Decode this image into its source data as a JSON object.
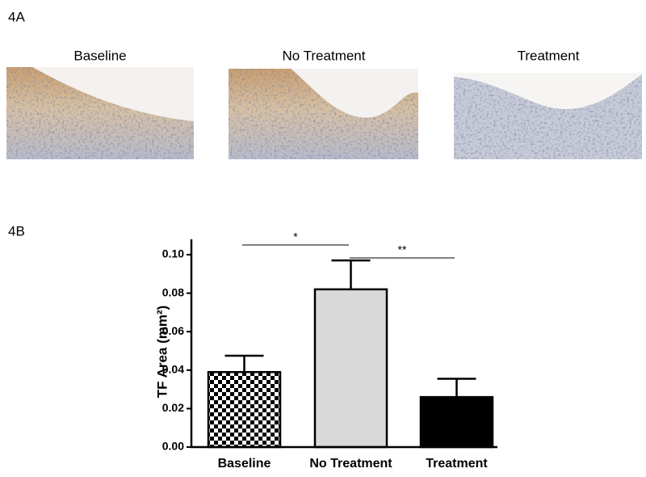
{
  "figure": {
    "panel_a": {
      "label": "4A",
      "images": [
        "Baseline",
        "No Treatment",
        "Treatment"
      ]
    },
    "panel_b_label": "4B"
  },
  "chart_data": {
    "type": "bar",
    "y_label": "TF Area (mm²)",
    "categories": [
      "Baseline",
      "No Treatment",
      "Treatment"
    ],
    "values": [
      0.039,
      0.082,
      0.026
    ],
    "errors": [
      0.0085,
      0.015,
      0.0095
    ],
    "colors": [
      "#ffffff",
      "#d9d9d9",
      "#000000"
    ],
    "fills": [
      "checkerboard",
      "solid",
      "solid"
    ],
    "ylim": [
      0,
      0.108
    ],
    "yticks": [
      {
        "value": 0,
        "label": "0.00"
      },
      {
        "value": 0.02,
        "label": "0.02"
      },
      {
        "value": 0.04,
        "label": "0.04"
      },
      {
        "value": 0.06,
        "label": "0.06"
      },
      {
        "value": 0.08,
        "label": "0.08"
      },
      {
        "value": 0.1,
        "label": "0.10"
      }
    ],
    "annotations": [
      "*",
      "**"
    ]
  }
}
